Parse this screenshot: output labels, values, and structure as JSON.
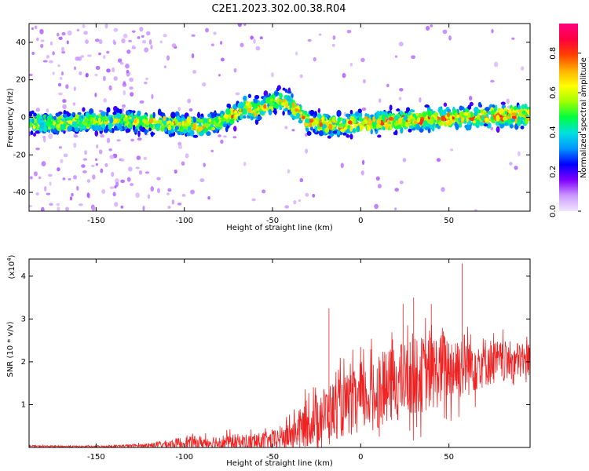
{
  "figure": {
    "title": "C2E1.2023.302.00.38.R04"
  },
  "chart_data": [
    {
      "type": "heatmap",
      "xlabel": "Height of straight line (km)",
      "ylabel": "Frequency (Hz)",
      "xlim": [
        -188,
        96
      ],
      "ylim": [
        -50,
        50
      ],
      "x_ticks": [
        -150,
        -100,
        -50,
        0,
        50
      ],
      "y_ticks": [
        -40,
        -20,
        0,
        20,
        40
      ],
      "colorbar": {
        "label": "Normalized spectral amplitude",
        "range": [
          0,
          0.95
        ],
        "ticks": [
          "0.0",
          "0.2",
          "0.4",
          "0.6",
          "0.8"
        ],
        "tick_values": [
          0.0,
          0.2,
          0.4,
          0.6,
          0.8
        ],
        "colormap": [
          "#f0e6ff",
          "#cc99ff",
          "#8000ff",
          "#0000ff",
          "#0096ff",
          "#00e0e0",
          "#00ff40",
          "#a0ff00",
          "#ffff00",
          "#ffb000",
          "#ff4000",
          "#ff0040",
          "#ff0080"
        ]
      },
      "center_frequency_profile": {
        "x": [
          -188,
          -170,
          -150,
          -130,
          -110,
          -90,
          -80,
          -70,
          -65,
          -60,
          -55,
          -50,
          -45,
          -40,
          -35,
          -30,
          -20,
          -10,
          0,
          20,
          40,
          60,
          80,
          96
        ],
        "y": [
          -3,
          -3,
          -2,
          -2,
          -3,
          -5,
          -2,
          2,
          6,
          4,
          5,
          8,
          9,
          7,
          2,
          -2,
          -4,
          -4,
          -3,
          -2,
          -1,
          0,
          1,
          1
        ]
      },
      "spread_hz": 6,
      "grid": false
    },
    {
      "type": "line",
      "xlabel": "Height of straight line (km)",
      "ylabel": "SNR (10 * v/v)",
      "multiplier_label": "(x10",
      "multiplier_exponent": "4",
      "multiplier_close": ")",
      "xlim": [
        -188,
        96
      ],
      "ylim": [
        0,
        4.4
      ],
      "x_ticks": [
        -150,
        -100,
        -50,
        0,
        50
      ],
      "y_ticks": [
        1,
        2,
        3,
        4
      ],
      "series": [
        {
          "color": "#ee2222",
          "envelope": {
            "x": [
              -188,
              -150,
              -120,
              -100,
              -80,
              -60,
              -50,
              -40,
              -30,
              -20,
              -10,
              0,
              10,
              20,
              30,
              40,
              50,
              60,
              70,
              80,
              96
            ],
            "mean": [
              0.03,
              0.02,
              0.05,
              0.1,
              0.12,
              0.12,
              0.15,
              0.3,
              0.55,
              0.8,
              0.95,
              1.1,
              1.3,
              1.5,
              1.65,
              1.75,
              1.85,
              1.95,
              2.0,
              2.0,
              2.05
            ],
            "amplitude": [
              0.03,
              0.03,
              0.08,
              0.25,
              0.3,
              0.35,
              0.4,
              0.6,
              0.9,
              1.1,
              1.2,
              1.3,
              1.4,
              1.5,
              1.5,
              1.5,
              1.4,
              1.3,
              1.0,
              0.8,
              0.7
            ]
          },
          "peaks": [
            {
              "x": 57.5,
              "y": 4.3
            },
            {
              "x": -18,
              "y": 3.25
            },
            {
              "x": 30,
              "y": 3.5
            },
            {
              "x": 40,
              "y": 3.35
            },
            {
              "x": 24,
              "y": 3.35
            }
          ]
        }
      ],
      "grid": false
    }
  ]
}
